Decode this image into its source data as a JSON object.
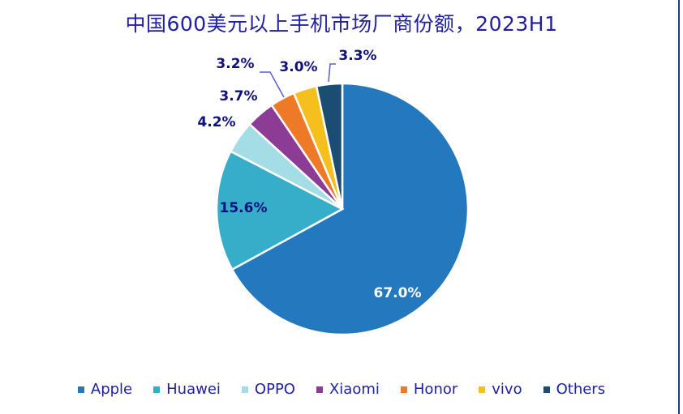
{
  "chart_data": {
    "type": "pie",
    "title": "中国600美元以上手机市场厂商份额，2023H1",
    "categories": [
      "Apple",
      "Huawei",
      "OPPO",
      "Xiaomi",
      "Honor",
      "vivo",
      "Others"
    ],
    "values": [
      67.0,
      15.6,
      4.2,
      3.7,
      3.2,
      3.0,
      3.3
    ],
    "data_labels": [
      "67.0%",
      "15.6%",
      "4.2%",
      "3.7%",
      "3.2%",
      "3.0%",
      "3.3%"
    ],
    "colors": [
      "#2478be",
      "#36adc9",
      "#a5dde6",
      "#8c3c95",
      "#ee7a28",
      "#f5c01e",
      "#1b4d73"
    ],
    "legend_position": "bottom",
    "start_angle_deg": 0,
    "direction": "clockwise"
  }
}
